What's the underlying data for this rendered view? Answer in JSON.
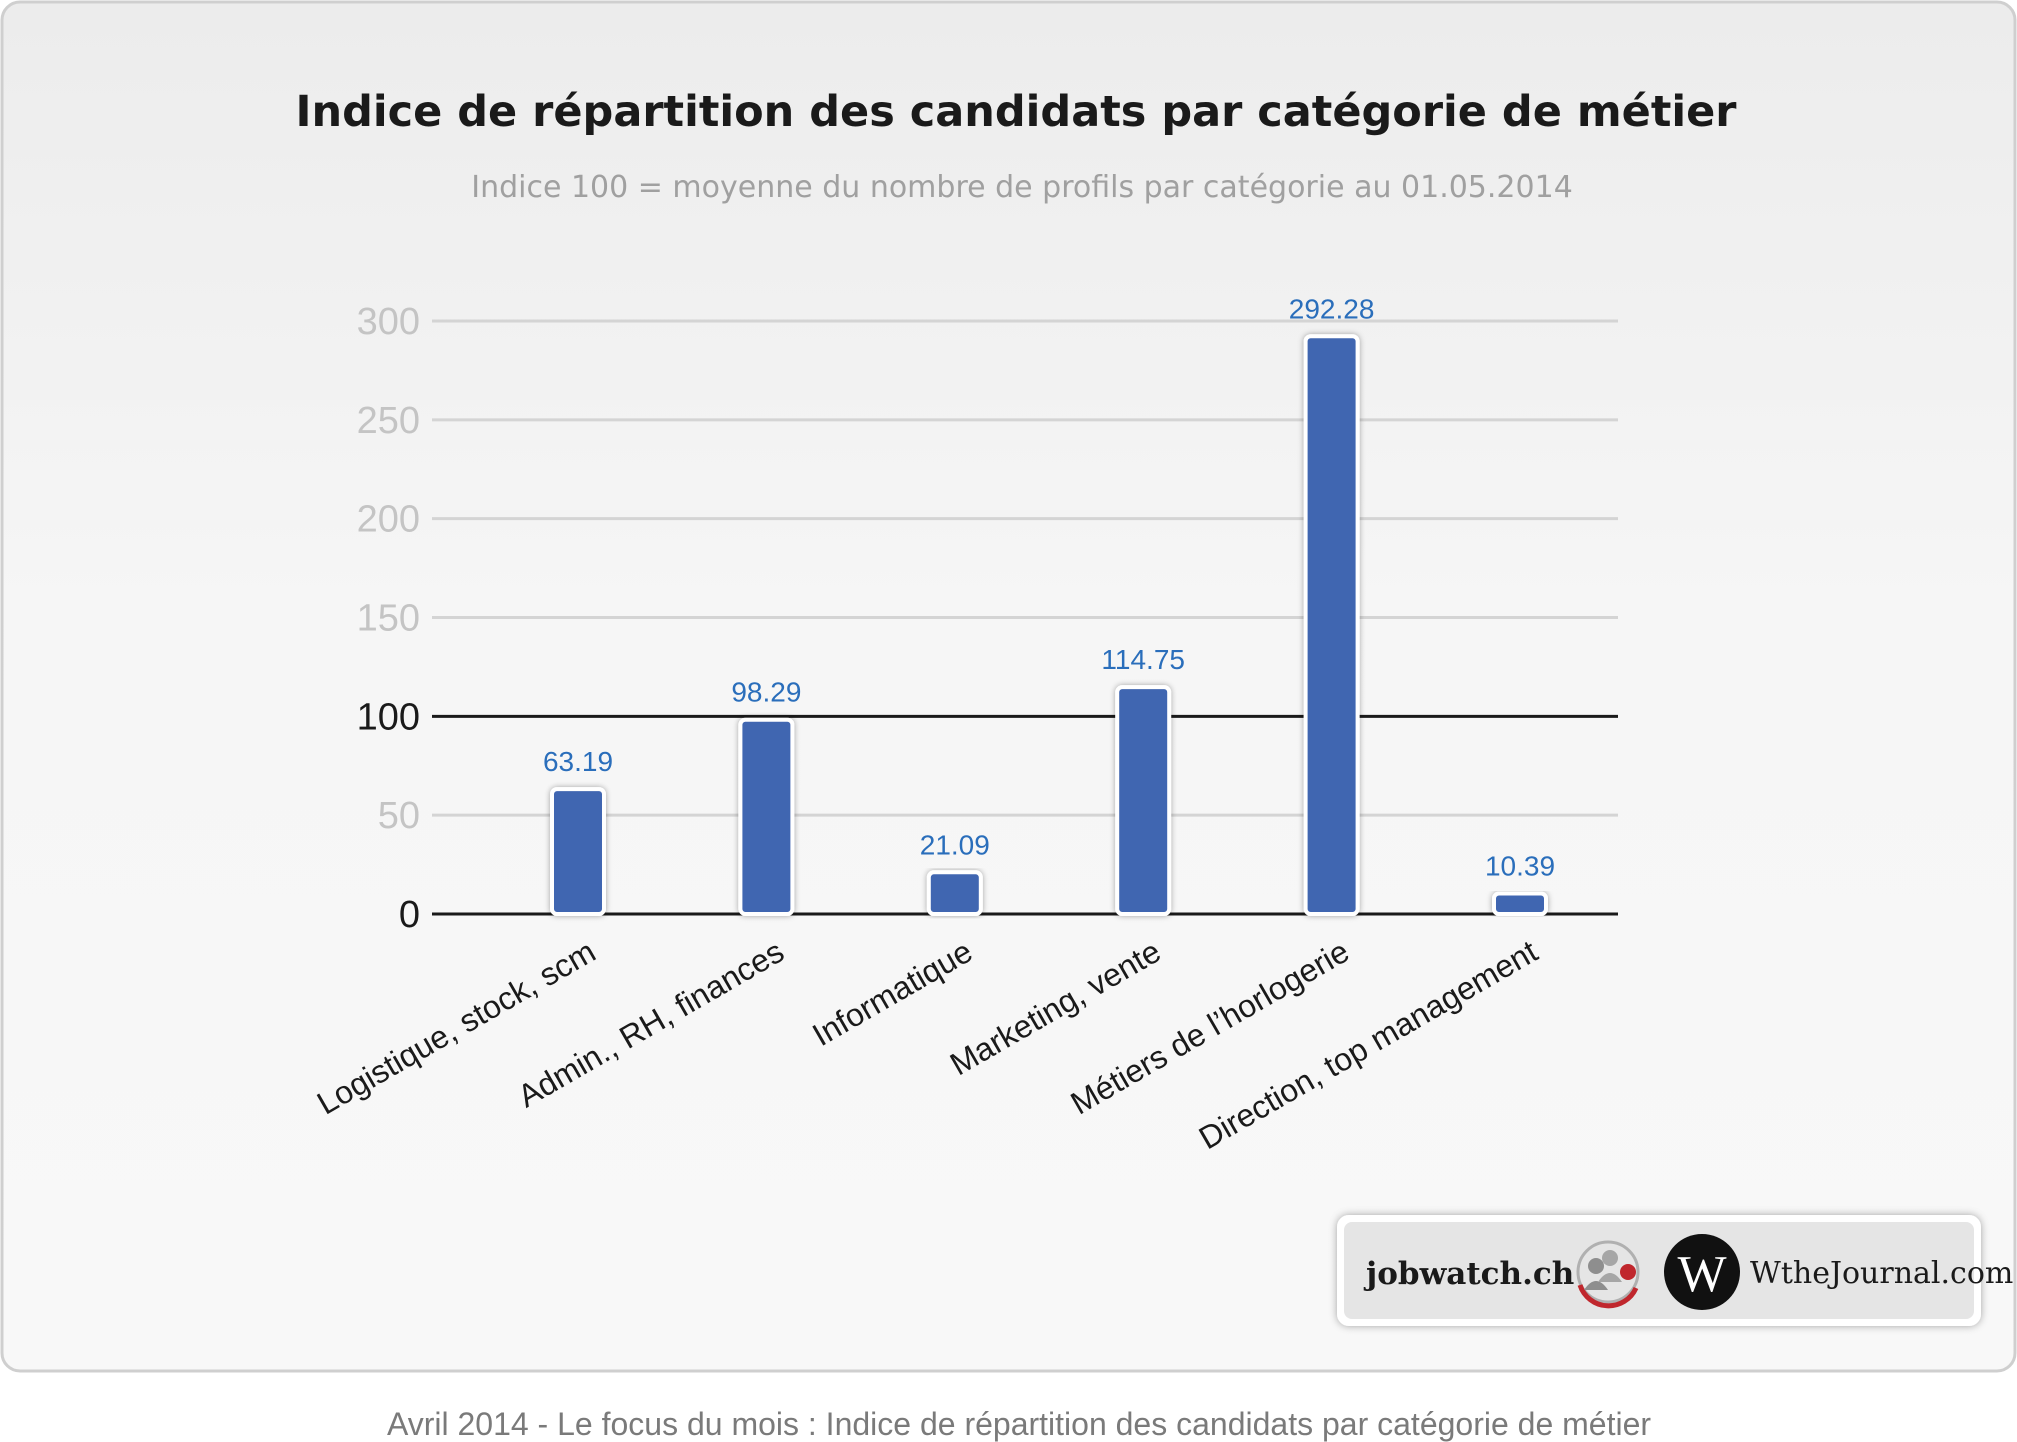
{
  "chart_data": {
    "type": "bar",
    "title": "Indice de répartition des candidats par catégorie de métier",
    "subtitle": "Indice 100 = moyenne du nombre de profils par catégorie au 01.05.2014",
    "xlabel": "",
    "ylabel": "",
    "ylim": [
      0,
      300
    ],
    "yticks": [
      0,
      50,
      100,
      150,
      200,
      250,
      300
    ],
    "reference_line": 100,
    "grid": true,
    "categories": [
      "Logistique, stock, scm",
      "Admin., RH, finances",
      "Informatique",
      "Marketing, vente",
      "Métiers de l’horlogerie",
      "Direction, top management"
    ],
    "values": [
      63.19,
      98.29,
      21.09,
      114.75,
      292.28,
      10.39
    ],
    "value_labels": [
      "63.19",
      "98.29",
      "21.09",
      "114.75",
      "292.28",
      "10.39"
    ],
    "colors": {
      "bar": "#4066b1",
      "value_label": "#2a6ebb",
      "gridline": "#d4d4d4",
      "reference_line": "#1a1a1a"
    }
  },
  "logos": {
    "jobwatch": "jobwatch.ch",
    "wthejournal_mark": "W",
    "wthejournal": "WtheJournal.com"
  },
  "caption": "Avril 2014 - Le focus du mois : Indice de répartition des candidats par catégorie de métier"
}
